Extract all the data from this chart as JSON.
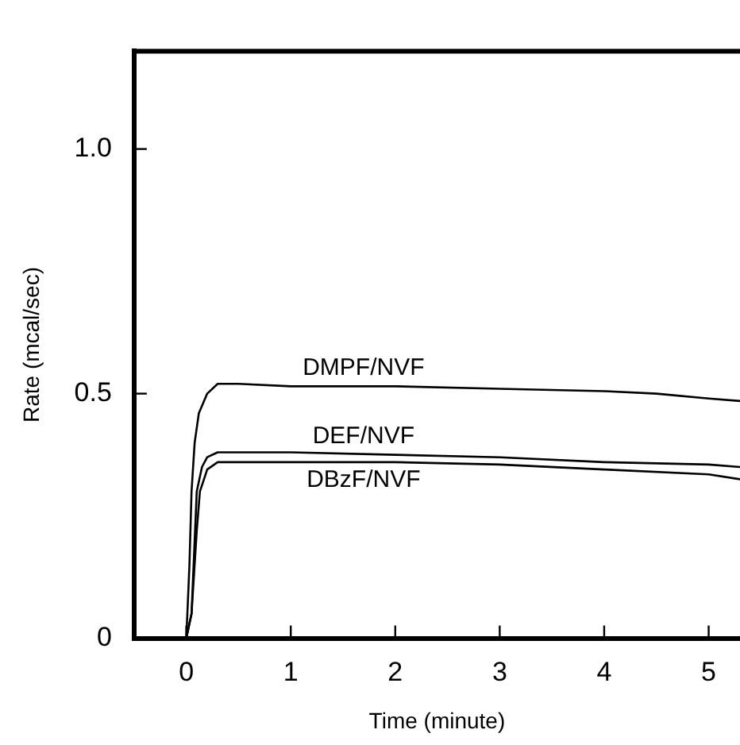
{
  "chart_data": {
    "type": "line",
    "xlabel": "Time (minute)",
    "ylabel": "Rate (mcal/sec)",
    "xlim": [
      -0.5,
      5.3
    ],
    "xticks": [
      0,
      1,
      2,
      3,
      4,
      5
    ],
    "ylim": [
      0,
      1.2
    ],
    "yticks": [
      0,
      0.5,
      {
        "value": 1,
        "label": "1.0"
      }
    ],
    "grid": false,
    "legend": false,
    "marker": "none",
    "line_style": "solid",
    "series": [
      {
        "name": "DMPF/NVF",
        "color": "#000000",
        "x": [
          0,
          0.03,
          0.05,
          0.08,
          0.12,
          0.2,
          0.3,
          0.5,
          1,
          2,
          3,
          4,
          4.5,
          5,
          5.3
        ],
        "values": [
          0,
          0.15,
          0.3,
          0.4,
          0.46,
          0.5,
          0.52,
          0.52,
          0.515,
          0.515,
          0.51,
          0.505,
          0.5,
          0.49,
          0.485
        ]
      },
      {
        "name": "DEF/NVF",
        "color": "#000000",
        "x": [
          0,
          0.05,
          0.08,
          0.1,
          0.15,
          0.2,
          0.3,
          1,
          2,
          3,
          4,
          5,
          5.3
        ],
        "values": [
          0,
          0.05,
          0.2,
          0.3,
          0.35,
          0.37,
          0.38,
          0.38,
          0.375,
          0.37,
          0.36,
          0.355,
          0.35
        ]
      },
      {
        "name": "DBzF/NVF",
        "color": "#000000",
        "x": [
          0,
          0.05,
          0.1,
          0.13,
          0.2,
          0.3,
          1,
          2,
          3,
          4,
          5,
          5.3
        ],
        "values": [
          0,
          0.05,
          0.22,
          0.3,
          0.345,
          0.36,
          0.36,
          0.36,
          0.355,
          0.345,
          0.335,
          0.325
        ]
      }
    ]
  }
}
